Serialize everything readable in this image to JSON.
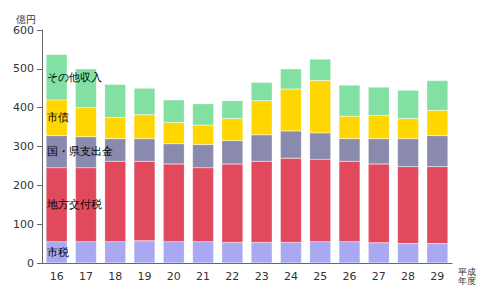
{
  "chart_data": {
    "type": "bar",
    "stacked": true,
    "grid": false,
    "y_label": "億円",
    "x_label": "平成\n年度",
    "categories": [
      "16",
      "17",
      "18",
      "19",
      "20",
      "21",
      "22",
      "23",
      "24",
      "25",
      "26",
      "27",
      "28",
      "29"
    ],
    "ylim": [
      0,
      600
    ],
    "yticks": [
      0,
      100,
      200,
      300,
      400,
      500,
      600
    ],
    "series": [
      {
        "name": "市税",
        "color": "#a9a9f2",
        "values": [
          55,
          55,
          55,
          57,
          55,
          55,
          53,
          53,
          53,
          55,
          55,
          52,
          50,
          50
        ]
      },
      {
        "name": "地方交付税",
        "color": "#e04a5c",
        "values": [
          190,
          190,
          207,
          205,
          200,
          190,
          202,
          209,
          217,
          212,
          207,
          203,
          198,
          198
        ]
      },
      {
        "name": "国・県支出金",
        "color": "#8a8aae",
        "values": [
          83,
          80,
          58,
          58,
          52,
          60,
          60,
          68,
          70,
          68,
          58,
          65,
          72,
          80
        ]
      },
      {
        "name": "市債",
        "color": "#ffd600",
        "values": [
          92,
          75,
          55,
          62,
          55,
          50,
          57,
          88,
          108,
          135,
          58,
          60,
          52,
          65
        ]
      },
      {
        "name": "その他収入",
        "color": "#82e0a2",
        "values": [
          117,
          100,
          85,
          68,
          58,
          55,
          46,
          47,
          52,
          55,
          80,
          73,
          73,
          77
        ]
      }
    ]
  }
}
